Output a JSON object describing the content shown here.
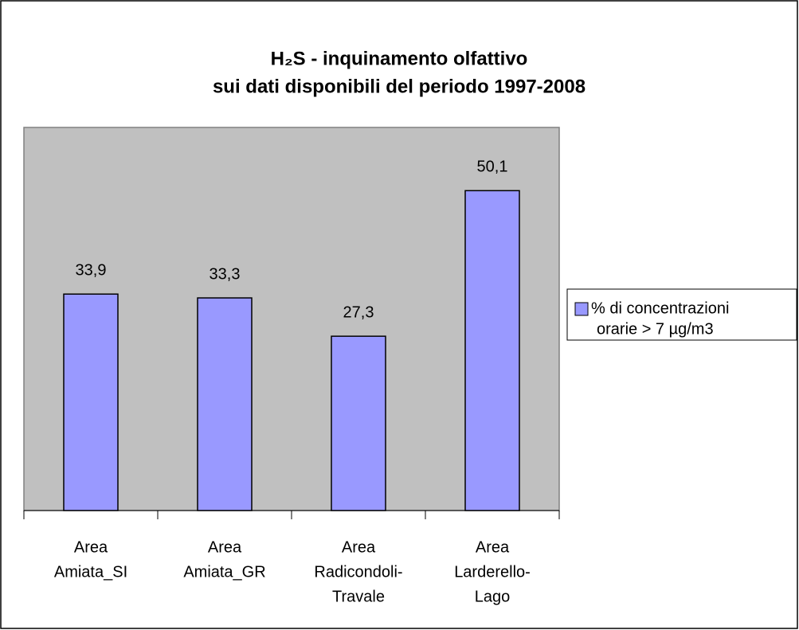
{
  "chart_data": {
    "type": "bar",
    "title": [
      "H₂S - inquinamento olfattivo",
      "sui dati disponibili del periodo 1997-2008"
    ],
    "categories": [
      [
        "Area",
        "Amiata_SI"
      ],
      [
        "Area",
        "Amiata_GR"
      ],
      [
        "Area",
        "Radicondoli-",
        "Travale"
      ],
      [
        "Area",
        "Larderello-",
        "Lago"
      ]
    ],
    "series": [
      {
        "name": [
          "% di concentrazioni",
          "orarie  > 7 µg/m3"
        ],
        "color": "#9999ff",
        "values": [
          33.9,
          33.3,
          27.3,
          50.1
        ],
        "value_labels": [
          "33,9",
          "33,3",
          "27,3",
          "50,1"
        ]
      }
    ],
    "ylim": [
      0,
      60
    ]
  }
}
